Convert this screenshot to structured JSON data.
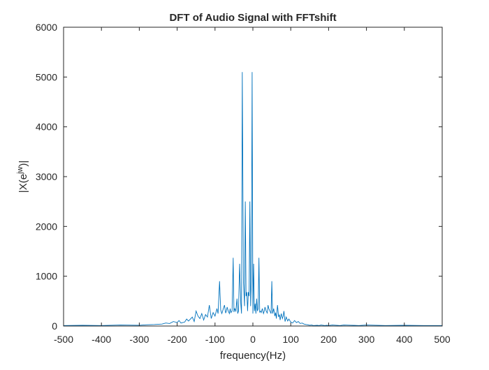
{
  "chart_data": {
    "type": "line",
    "title": "DFT of Audio Signal with FFTshift",
    "xlabel": "frequency(Hz)",
    "ylabel": "|X(e^{jw})|",
    "xlim": [
      -500,
      500
    ],
    "ylim": [
      0,
      6000
    ],
    "grid": false,
    "legend": "none",
    "x_ticks": [
      -500,
      -400,
      -300,
      -200,
      -100,
      0,
      100,
      200,
      300,
      400,
      500
    ],
    "x_tick_labels": [
      "-500",
      "-400",
      "-300",
      "-200",
      "-100",
      "0",
      "100",
      "200",
      "300",
      "400",
      "500"
    ],
    "y_ticks": [
      0,
      1000,
      2000,
      3000,
      4000,
      5000,
      6000
    ],
    "y_tick_labels": [
      "0",
      "1000",
      "2000",
      "3000",
      "4000",
      "5000",
      "6000"
    ],
    "line_color": "#0072bd",
    "series": [
      {
        "x": [
          -500,
          -450,
          -400,
          -350,
          -300,
          -280,
          -260,
          -240,
          -230,
          -220,
          -210,
          -200,
          -195,
          -190,
          -180,
          -175,
          -170,
          -160,
          -155,
          -150,
          -145,
          -140,
          -135,
          -130,
          -125,
          -120,
          -115,
          -110,
          -105,
          -100,
          -95,
          -92,
          -88,
          -85,
          -82,
          -80,
          -78,
          -75,
          -72,
          -70,
          -68,
          -65,
          -62,
          -60,
          -58,
          -55,
          -52,
          -50,
          -48,
          -45,
          -42,
          -40,
          -38,
          -35,
          -32,
          -30,
          -28,
          -25,
          -22,
          -20,
          -18,
          -16,
          -14,
          -12,
          -10,
          -8,
          -6,
          -4,
          -2,
          0,
          2,
          4,
          6,
          8,
          10,
          12,
          14,
          16,
          18,
          20,
          22,
          25,
          28,
          30,
          32,
          35,
          38,
          40,
          42,
          45,
          48,
          50,
          52,
          55,
          58,
          60,
          62,
          65,
          68,
          70,
          72,
          75,
          78,
          80,
          82,
          85,
          88,
          92,
          95,
          100,
          105,
          110,
          115,
          120,
          125,
          130,
          135,
          140,
          145,
          150,
          155,
          160,
          170,
          175,
          180,
          190,
          195,
          200,
          210,
          220,
          230,
          240,
          260,
          280,
          300,
          350,
          400,
          450,
          500
        ],
        "values": [
          10,
          15,
          10,
          20,
          15,
          25,
          30,
          40,
          60,
          50,
          90,
          70,
          110,
          60,
          80,
          140,
          100,
          180,
          90,
          300,
          200,
          150,
          250,
          120,
          230,
          180,
          420,
          150,
          270,
          200,
          350,
          250,
          900,
          320,
          250,
          300,
          350,
          420,
          260,
          300,
          380,
          300,
          250,
          350,
          270,
          300,
          1370,
          280,
          350,
          300,
          550,
          250,
          300,
          1250,
          450,
          250,
          5100,
          900,
          400,
          2500,
          600,
          680,
          300,
          680,
          600,
          2500,
          400,
          900,
          5100,
          250,
          1250,
          300,
          450,
          250,
          550,
          300,
          350,
          1370,
          280,
          300,
          270,
          350,
          250,
          300,
          380,
          300,
          260,
          420,
          350,
          300,
          250,
          900,
          250,
          350,
          200,
          270,
          150,
          420,
          180,
          230,
          120,
          250,
          150,
          200,
          300,
          90,
          180,
          100,
          140,
          80,
          60,
          110,
          70,
          90,
          50,
          60,
          40,
          30,
          25,
          15,
          20,
          10,
          15,
          10,
          20,
          10,
          15,
          10,
          20,
          15,
          10,
          20,
          15,
          10,
          20,
          10,
          15,
          10,
          10
        ]
      }
    ]
  }
}
